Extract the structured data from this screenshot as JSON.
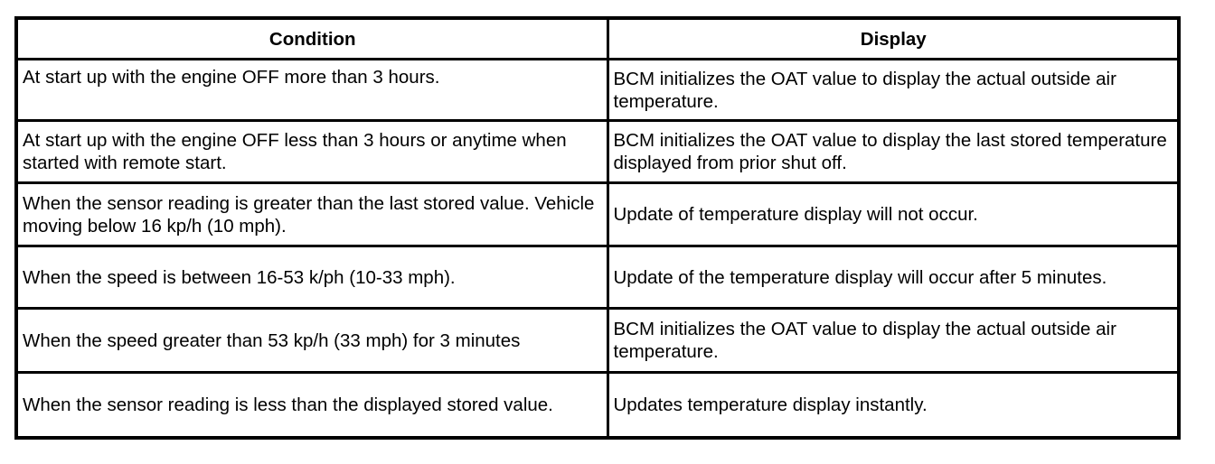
{
  "table": {
    "headers": [
      "Condition",
      "Display"
    ],
    "rows": [
      {
        "condition": "At start up with the engine OFF more than 3 hours.",
        "display": "BCM initializes the OAT value to display the actual outside air temperature."
      },
      {
        "condition": "At start up with the engine OFF less than 3 hours or anytime when started with remote start.",
        "display": "BCM initializes the OAT value to display the last stored temperature displayed from prior shut off."
      },
      {
        "condition": "When the sensor reading is greater than the last stored value. Vehicle moving below 16 kp/h (10 mph).",
        "display": "Update of temperature display will not occur."
      },
      {
        "condition": "When the speed is between 16-53 k/ph (10-33 mph).",
        "display": "Update of the temperature display will occur after 5 minutes."
      },
      {
        "condition": "When the speed greater than 53 kp/h (33 mph) for 3 minutes",
        "display": "BCM initializes the OAT value to display the actual outside air temperature."
      },
      {
        "condition": "When the sensor reading is less than the displayed stored value.",
        "display": "Updates temperature display instantly."
      }
    ]
  }
}
